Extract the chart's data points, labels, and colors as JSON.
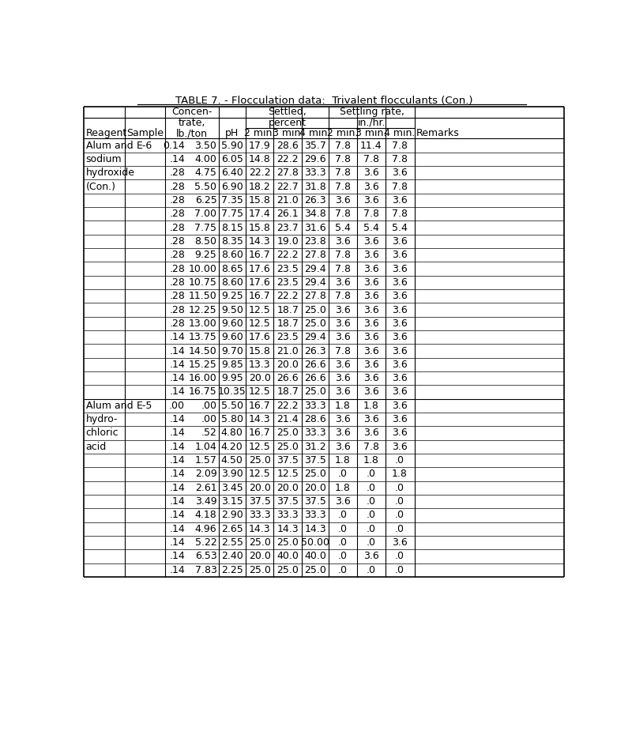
{
  "title": "TABLE 7. - Flocculation data:  Trivalent flocculants (Con.)",
  "rows": [
    [
      "Alum and",
      "E-6",
      "0.14",
      "3.50",
      "5.90",
      "17.9",
      "28.6",
      "35.7",
      "7.8",
      "11.4",
      "7.8",
      ""
    ],
    [
      "sodium",
      "",
      ".14",
      "4.00",
      "6.05",
      "14.8",
      "22.2",
      "29.6",
      "7.8",
      "7.8",
      "7.8",
      ""
    ],
    [
      "hydroxide",
      "",
      ".28",
      "4.75",
      "6.40",
      "22.2",
      "27.8",
      "33.3",
      "7.8",
      "3.6",
      "3.6",
      ""
    ],
    [
      "(Con.)",
      "",
      ".28",
      "5.50",
      "6.90",
      "18.2",
      "22.7",
      "31.8",
      "7.8",
      "3.6",
      "7.8",
      ""
    ],
    [
      "",
      "",
      ".28",
      "6.25",
      "7.35",
      "15.8",
      "21.0",
      "26.3",
      "3.6",
      "3.6",
      "3.6",
      ""
    ],
    [
      "",
      "",
      ".28",
      "7.00",
      "7.75",
      "17.4",
      "26.1",
      "34.8",
      "7.8",
      "7.8",
      "7.8",
      ""
    ],
    [
      "",
      "",
      ".28",
      "7.75",
      "8.15",
      "15.8",
      "23.7",
      "31.6",
      "5.4",
      "5.4",
      "5.4",
      ""
    ],
    [
      "",
      "",
      ".28",
      "8.50",
      "8.35",
      "14.3",
      "19.0",
      "23.8",
      "3.6",
      "3.6",
      "3.6",
      ""
    ],
    [
      "",
      "",
      ".28",
      "9.25",
      "8.60",
      "16.7",
      "22.2",
      "27.8",
      "7.8",
      "3.6",
      "3.6",
      ""
    ],
    [
      "",
      "",
      ".28",
      "10.00",
      "8.65",
      "17.6",
      "23.5",
      "29.4",
      "7.8",
      "3.6",
      "3.6",
      ""
    ],
    [
      "",
      "",
      ".28",
      "10.75",
      "8.60",
      "17.6",
      "23.5",
      "29.4",
      "3.6",
      "3.6",
      "3.6",
      ""
    ],
    [
      "",
      "",
      ".28",
      "11.50",
      "9.25",
      "16.7",
      "22.2",
      "27.8",
      "7.8",
      "3.6",
      "3.6",
      ""
    ],
    [
      "",
      "",
      ".28",
      "12.25",
      "9.50",
      "12.5",
      "18.7",
      "25.0",
      "3.6",
      "3.6",
      "3.6",
      ""
    ],
    [
      "",
      "",
      ".28",
      "13.00",
      "9.60",
      "12.5",
      "18.7",
      "25.0",
      "3.6",
      "3.6",
      "3.6",
      ""
    ],
    [
      "",
      "",
      ".14",
      "13.75",
      "9.60",
      "17.6",
      "23.5",
      "29.4",
      "3.6",
      "3.6",
      "3.6",
      ""
    ],
    [
      "",
      "",
      ".14",
      "14.50",
      "9.70",
      "15.8",
      "21.0",
      "26.3",
      "7.8",
      "3.6",
      "3.6",
      ""
    ],
    [
      "",
      "",
      ".14",
      "15.25",
      "9.85",
      "13.3",
      "20.0",
      "26.6",
      "3.6",
      "3.6",
      "3.6",
      ""
    ],
    [
      "",
      "",
      ".14",
      "16.00",
      "9.95",
      "20.0",
      "26.6",
      "26.6",
      "3.6",
      "3.6",
      "3.6",
      ""
    ],
    [
      "",
      "",
      ".14",
      "16.75",
      "10.35",
      "12.5",
      "18.7",
      "25.0",
      "3.6",
      "3.6",
      "3.6",
      ""
    ],
    [
      "Alum and",
      "E-5",
      ".00",
      ".00",
      "5.50",
      "16.7",
      "22.2",
      "33.3",
      "1.8",
      "1.8",
      "3.6",
      ""
    ],
    [
      "hydro-",
      "",
      ".14",
      ".00",
      "5.80",
      "14.3",
      "21.4",
      "28.6",
      "3.6",
      "3.6",
      "3.6",
      ""
    ],
    [
      "chloric",
      "",
      ".14",
      ".52",
      "4.80",
      "16.7",
      "25.0",
      "33.3",
      "3.6",
      "3.6",
      "3.6",
      ""
    ],
    [
      "acid",
      "",
      ".14",
      "1.04",
      "4.20",
      "12.5",
      "25.0",
      "31.2",
      "3.6",
      "7.8",
      "3.6",
      ""
    ],
    [
      "",
      "",
      ".14",
      "1.57",
      "4.50",
      "25.0",
      "37.5",
      "37.5",
      "1.8",
      "1.8",
      ".0",
      ""
    ],
    [
      "",
      "",
      ".14",
      "2.09",
      "3.90",
      "12.5",
      "12.5",
      "25.0",
      ".0",
      ".0",
      "1.8",
      ""
    ],
    [
      "",
      "",
      ".14",
      "2.61",
      "3.45",
      "20.0",
      "20.0",
      "20.0",
      "1.8",
      ".0",
      ".0",
      ""
    ],
    [
      "",
      "",
      ".14",
      "3.49",
      "3.15",
      "37.5",
      "37.5",
      "37.5",
      "3.6",
      ".0",
      ".0",
      ""
    ],
    [
      "",
      "",
      ".14",
      "4.18",
      "2.90",
      "33.3",
      "33.3",
      "33.3",
      ".0",
      ".0",
      ".0",
      ""
    ],
    [
      "",
      "",
      ".14",
      "4.96",
      "2.65",
      "14.3",
      "14.3",
      "14.3",
      ".0",
      ".0",
      ".0",
      ""
    ],
    [
      "",
      "",
      ".14",
      "5.22",
      "2.55",
      "25.0",
      "25.0",
      "50.00",
      ".0",
      ".0",
      "3.6",
      ""
    ],
    [
      "",
      "",
      ".14",
      "6.53",
      "2.40",
      "20.0",
      "40.0",
      "40.0",
      ".0",
      "3.6",
      ".0",
      ""
    ],
    [
      "",
      "",
      ".14",
      "7.83",
      "2.25",
      "25.0",
      "25.0",
      "25.0",
      ".0",
      ".0",
      ".0",
      ""
    ]
  ],
  "separator_after_row": 18,
  "background_color": "#ffffff",
  "text_color": "#000000"
}
